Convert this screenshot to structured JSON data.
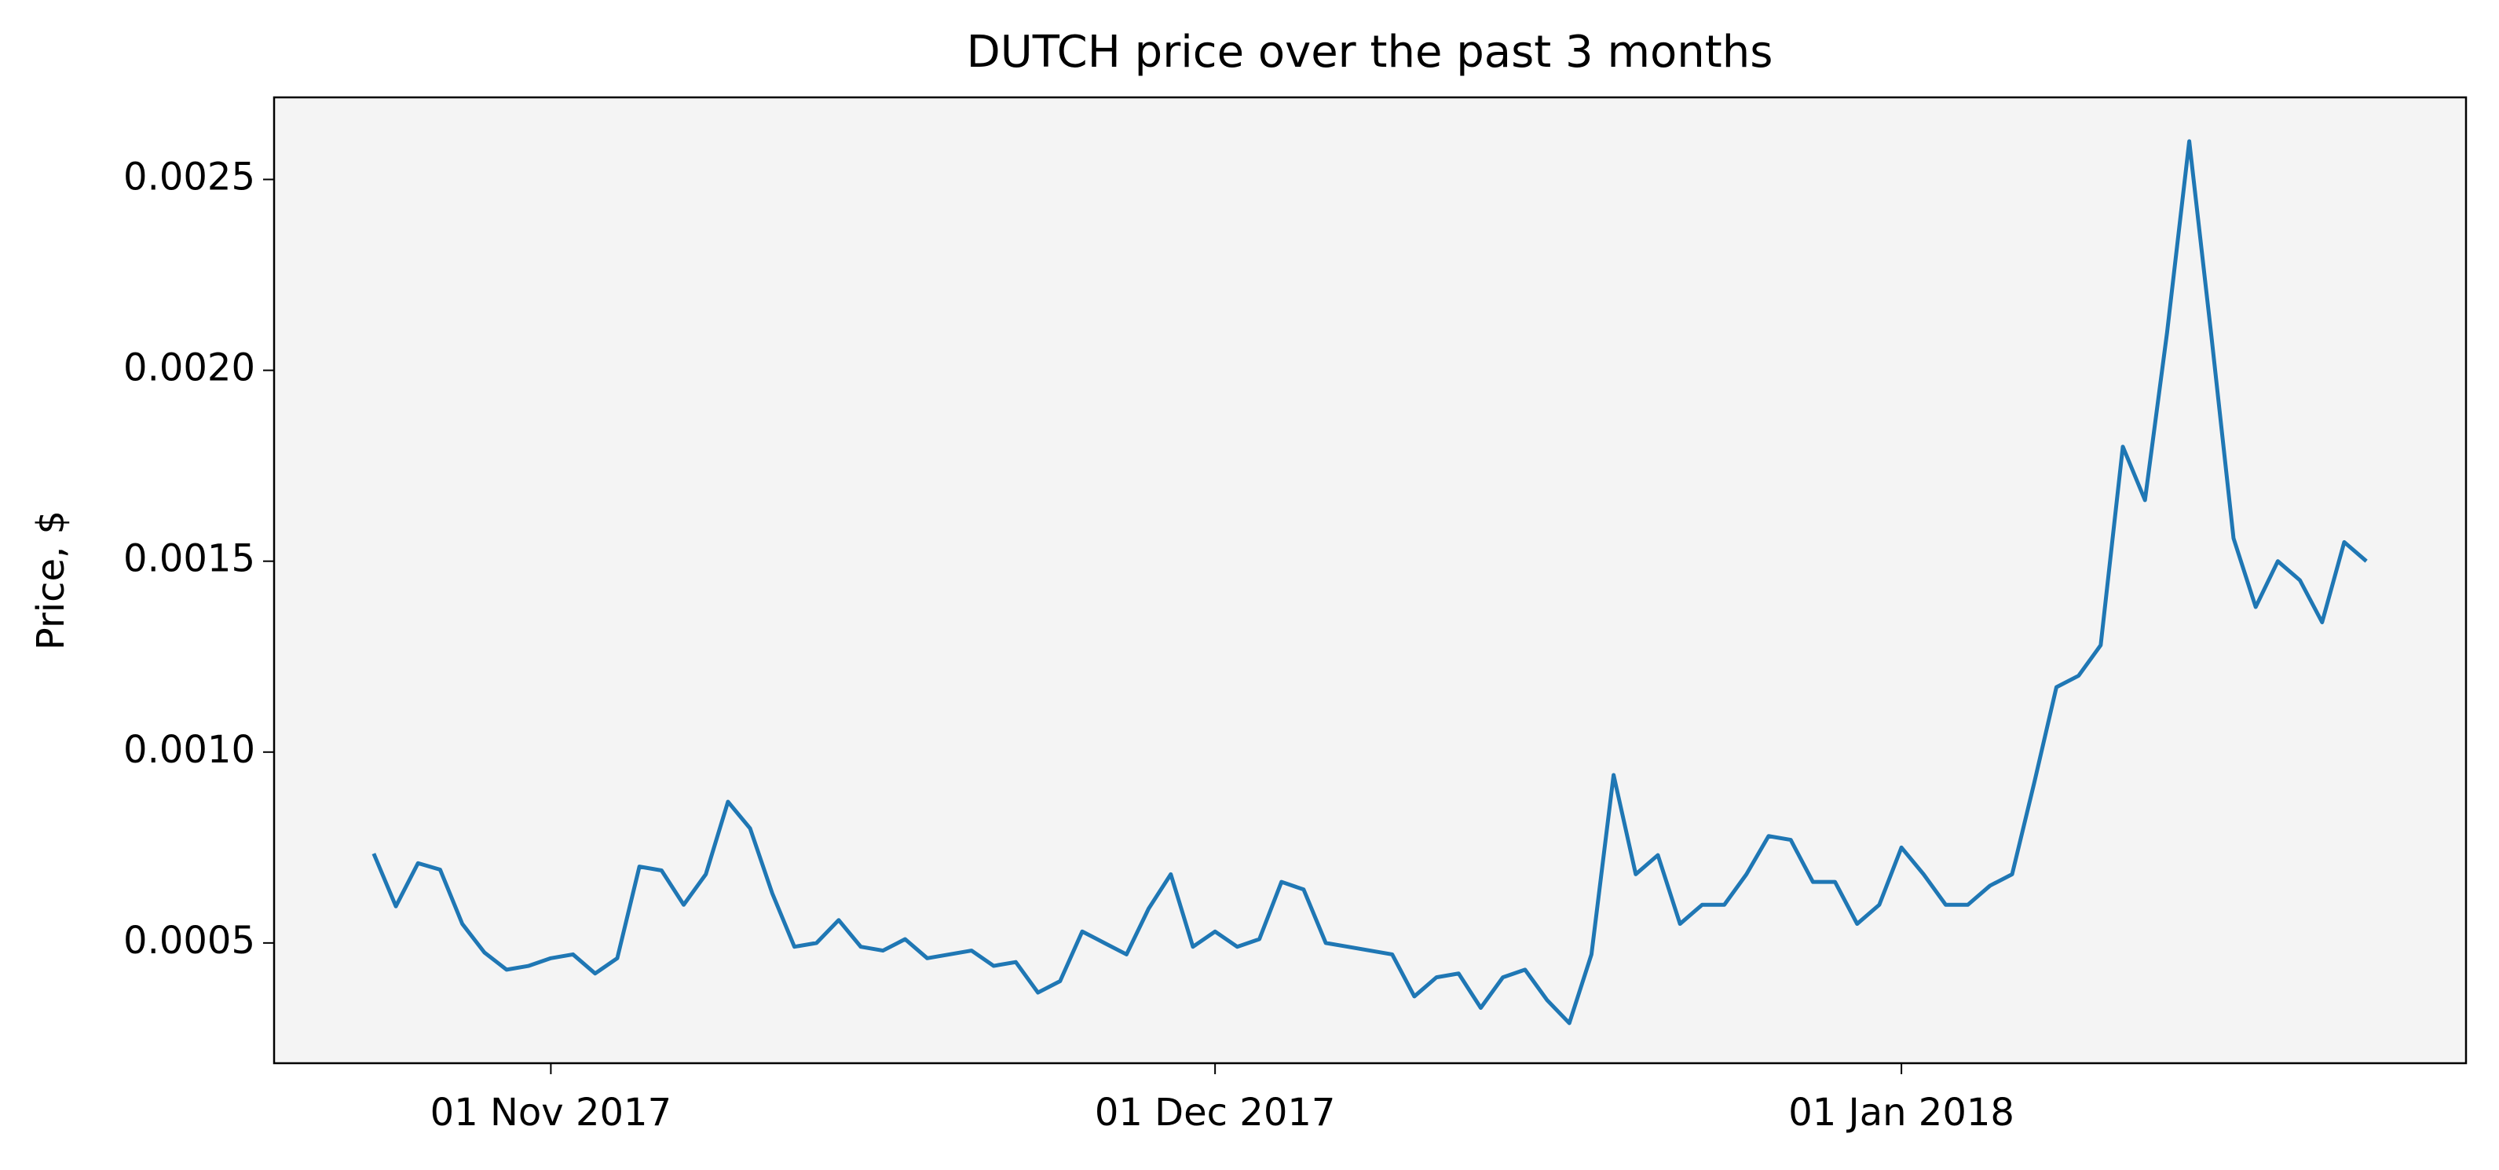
{
  "chart_data": {
    "type": "line",
    "title": "DUTCH price over the past 3 months",
    "y_label": "Price, $",
    "color": "#1f77b4",
    "x": [
      "2017-10-24",
      "2017-10-25",
      "2017-10-26",
      "2017-10-27",
      "2017-10-28",
      "2017-10-29",
      "2017-10-30",
      "2017-10-31",
      "2017-11-01",
      "2017-11-02",
      "2017-11-03",
      "2017-11-04",
      "2017-11-05",
      "2017-11-06",
      "2017-11-07",
      "2017-11-08",
      "2017-11-09",
      "2017-11-10",
      "2017-11-11",
      "2017-11-12",
      "2017-11-13",
      "2017-11-14",
      "2017-11-15",
      "2017-11-16",
      "2017-11-17",
      "2017-11-18",
      "2017-11-19",
      "2017-11-20",
      "2017-11-21",
      "2017-11-22",
      "2017-11-23",
      "2017-11-24",
      "2017-11-25",
      "2017-11-26",
      "2017-11-27",
      "2017-11-28",
      "2017-11-29",
      "2017-11-30",
      "2017-12-01",
      "2017-12-02",
      "2017-12-03",
      "2017-12-04",
      "2017-12-05",
      "2017-12-06",
      "2017-12-07",
      "2017-12-08",
      "2017-12-09",
      "2017-12-10",
      "2017-12-11",
      "2017-12-12",
      "2017-12-13",
      "2017-12-14",
      "2017-12-15",
      "2017-12-16",
      "2017-12-17",
      "2017-12-18",
      "2017-12-19",
      "2017-12-20",
      "2017-12-21",
      "2017-12-22",
      "2017-12-23",
      "2017-12-24",
      "2017-12-25",
      "2017-12-26",
      "2017-12-27",
      "2017-12-28",
      "2017-12-29",
      "2017-12-30",
      "2017-12-31",
      "2018-01-01",
      "2018-01-02",
      "2018-01-03",
      "2018-01-04",
      "2018-01-05",
      "2018-01-06",
      "2018-01-07",
      "2018-01-08",
      "2018-01-09",
      "2018-01-10",
      "2018-01-11",
      "2018-01-12",
      "2018-01-13",
      "2018-01-14",
      "2018-01-15",
      "2018-01-16",
      "2018-01-17",
      "2018-01-18",
      "2018-01-19",
      "2018-01-20",
      "2018-01-21",
      "2018-01-22"
    ],
    "values": [
      0.000734,
      0.000596,
      0.000709,
      0.000692,
      0.00055,
      0.000475,
      0.00043,
      0.00044,
      0.00046,
      0.00047,
      0.00042,
      0.00046,
      0.0007,
      0.00069,
      0.0006,
      0.00068,
      0.00087,
      0.0008,
      0.00063,
      0.00049,
      0.0005,
      0.00056,
      0.00049,
      0.00048,
      0.00051,
      0.00046,
      0.00047,
      0.00048,
      0.00044,
      0.00045,
      0.00037,
      0.0004,
      0.00053,
      0.0005,
      0.00047,
      0.00059,
      0.00068,
      0.00049,
      0.00053,
      0.00049,
      0.00051,
      0.00066,
      0.00064,
      0.0005,
      0.00049,
      0.00048,
      0.00047,
      0.00036,
      0.00041,
      0.00042,
      0.00033,
      0.00041,
      0.00043,
      0.00035,
      0.00029,
      0.00047,
      0.00094,
      0.00068,
      0.00073,
      0.00055,
      0.0006,
      0.0006,
      0.00068,
      0.00078,
      0.00077,
      0.00066,
      0.00066,
      0.00055,
      0.0006,
      0.00075,
      0.00068,
      0.0006,
      0.0006,
      0.00065,
      0.00068,
      0.00092,
      0.00117,
      0.0012,
      0.00128,
      0.0018,
      0.00166,
      0.0021,
      0.0026,
      0.00209,
      0.00156,
      0.00138,
      0.0015,
      0.00145,
      0.00134,
      0.00155,
      0.0015
    ],
    "xlim": [
      "2017-10-19T12:00:00Z",
      "2018-01-26T12:00:00Z"
    ],
    "xticks": [
      {
        "value": "2017-11-01",
        "label": "01 Nov 2017"
      },
      {
        "value": "2017-12-01",
        "label": "01 Dec 2017"
      },
      {
        "value": "2018-01-01",
        "label": "01 Jan 2018"
      }
    ],
    "ylim": [
      0.000185,
      0.002715
    ],
    "yticks": [
      0.0005,
      {
        "value": 0.001,
        "label": "0.0010"
      },
      0.0015,
      {
        "value": 0.002,
        "label": "0.0020"
      },
      0.0025
    ],
    "grid": false
  }
}
